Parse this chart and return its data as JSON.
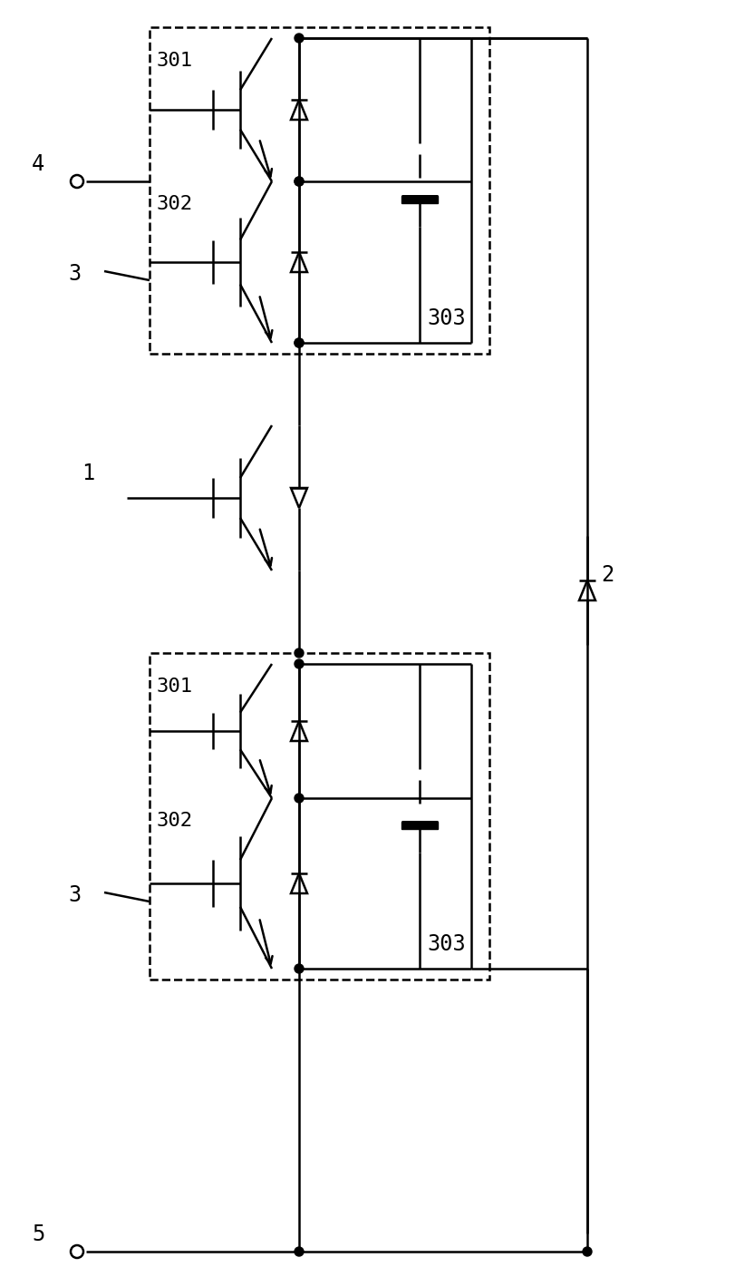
{
  "fig_width": 8.11,
  "fig_height": 14.08,
  "dpi": 100,
  "background": "white",
  "lw": 1.8,
  "dlw": 1.8
}
